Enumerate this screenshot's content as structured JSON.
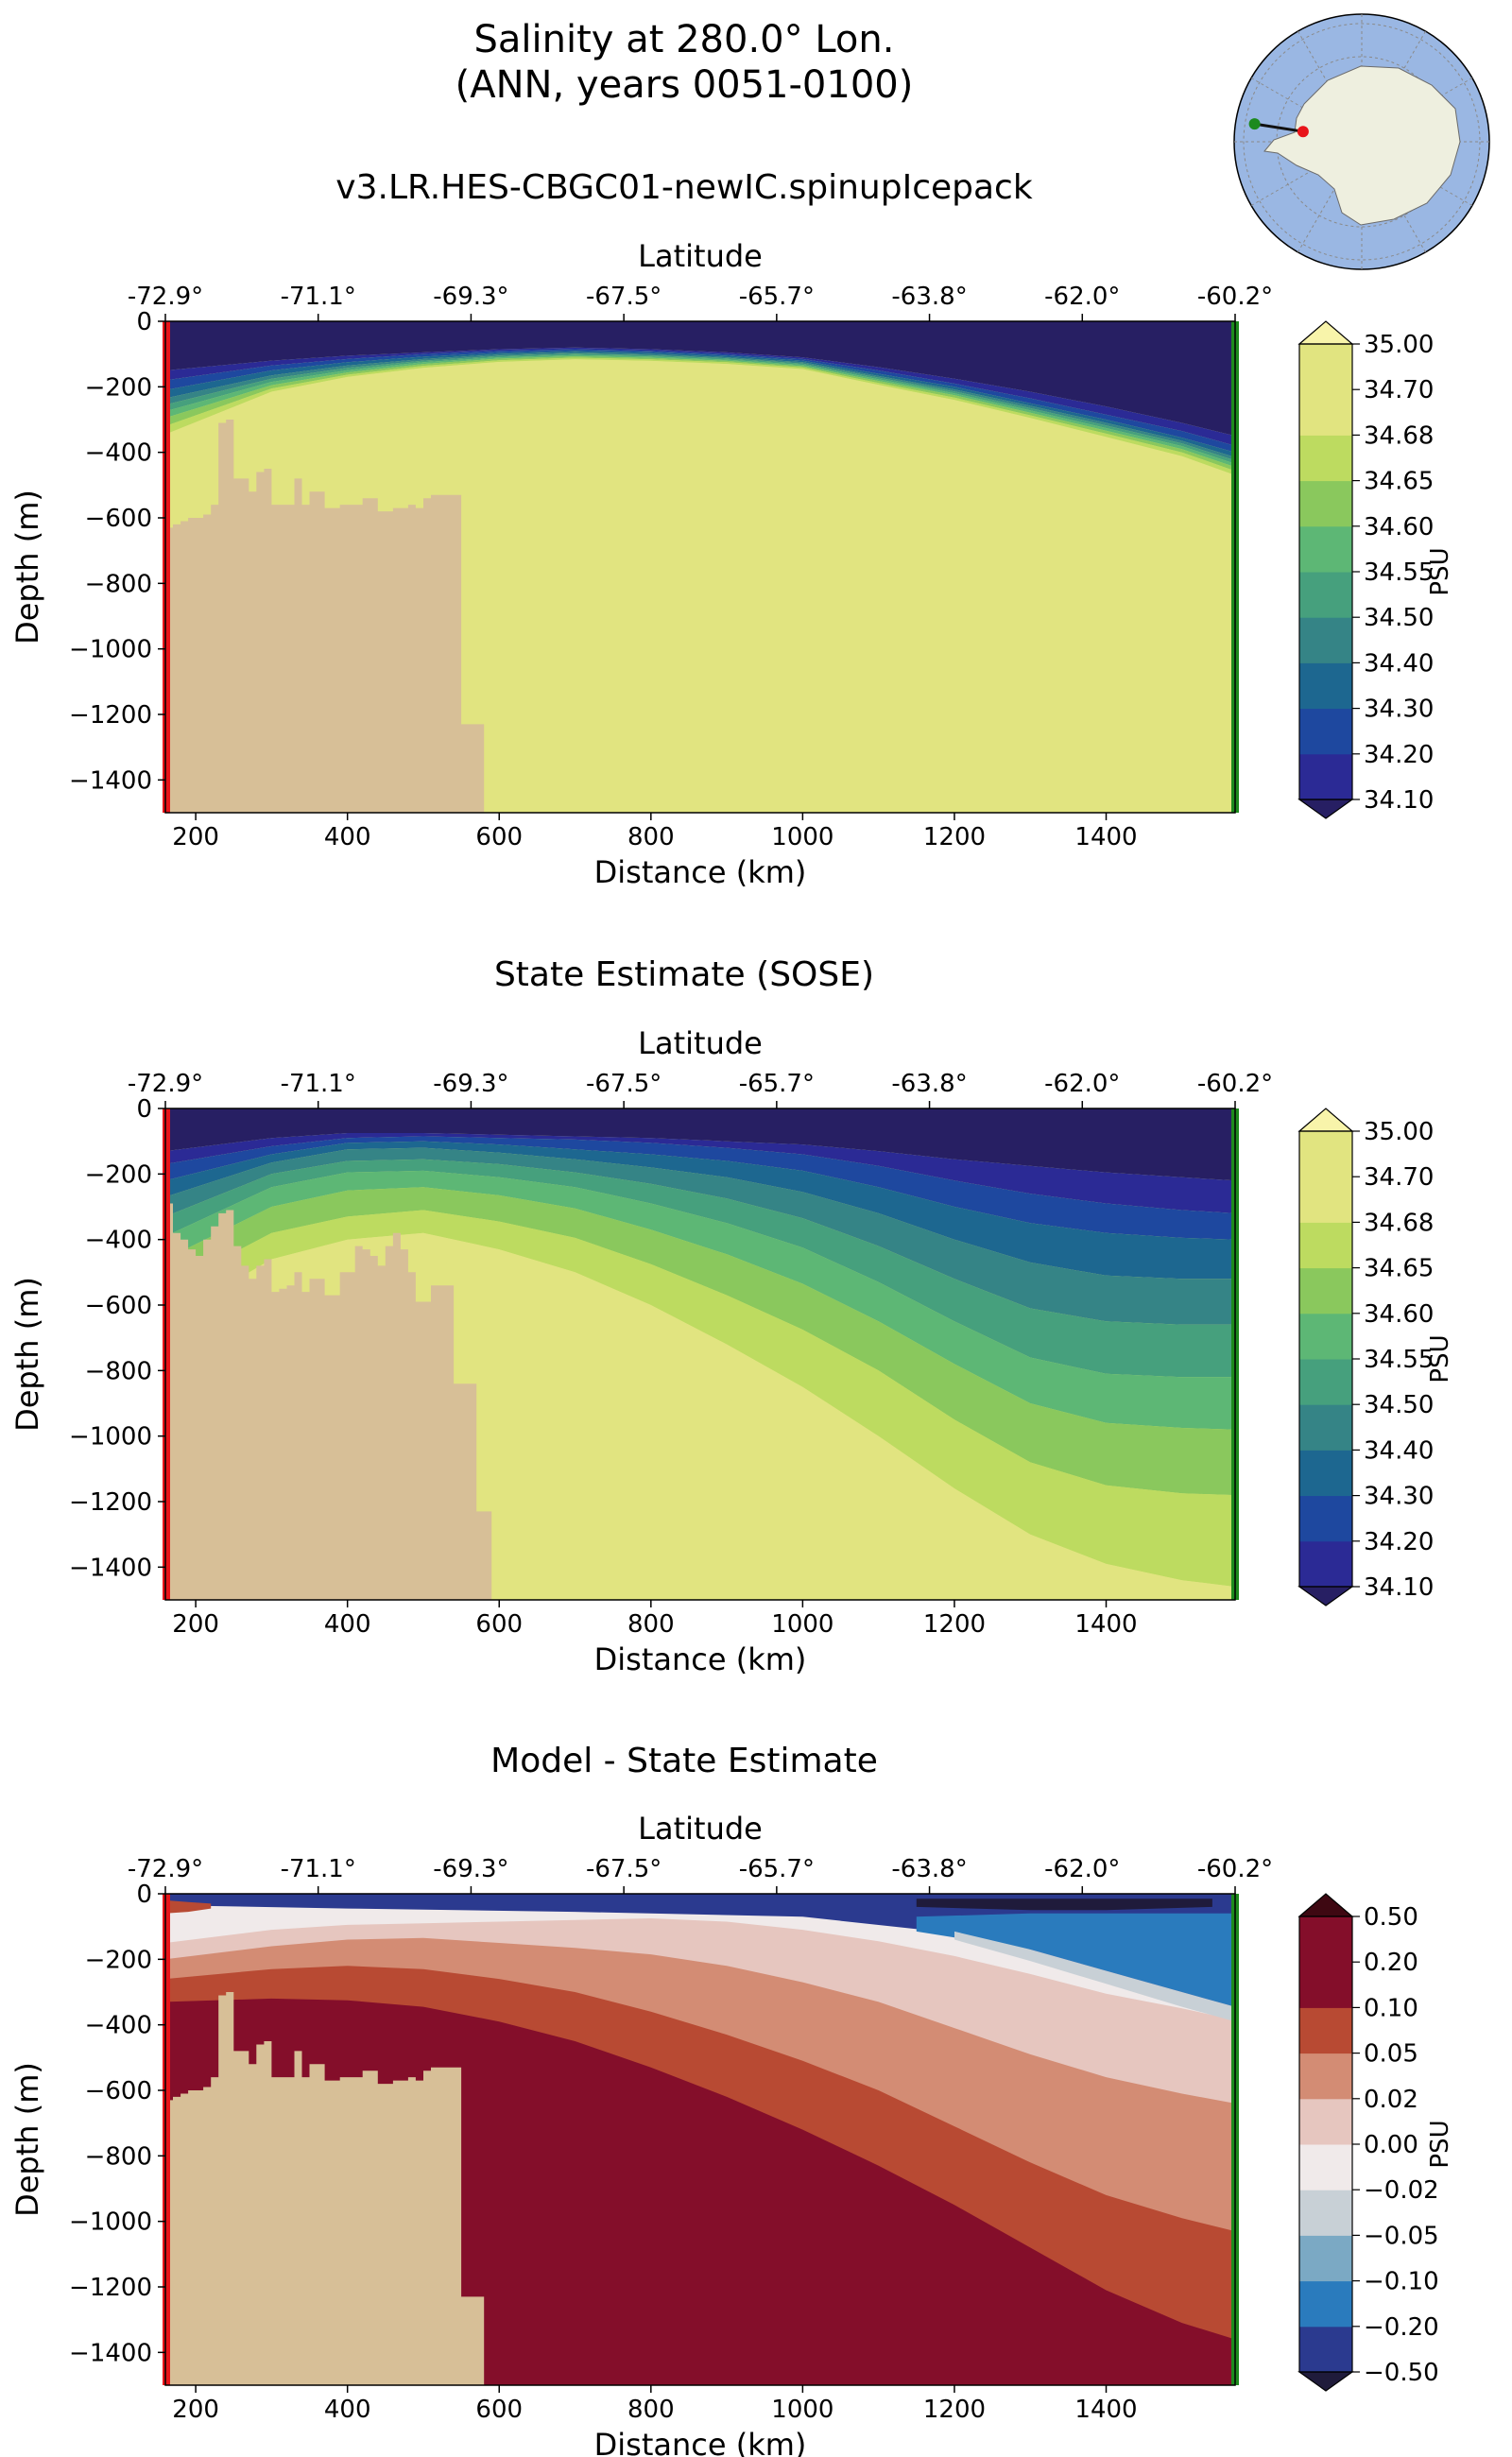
{
  "header": {
    "title_line1": "Salinity at 280.0° Lon.",
    "title_line2": "(ANN, years 0051-0100)"
  },
  "colors": {
    "land": "#d7bf97",
    "ocean": "#9ab7e3",
    "antarctica": "#eeefdf",
    "transect": "#111111",
    "start_marker": "#e8141a",
    "end_marker": "#1d8a1d",
    "salinity_cmap": [
      "#271f63",
      "#2b2a95",
      "#1e489f",
      "#1d6790",
      "#358486",
      "#46a07d",
      "#5db775",
      "#8ac85d",
      "#bddb60",
      "#e1e480",
      "#f8f4aa"
    ],
    "difference_cmap": [
      "#1f1b3b",
      "#2b3a8f",
      "#2a7bbd",
      "#7ba9c4",
      "#c8d0d6",
      "#f0eaea",
      "#e6c6bf",
      "#d38c74",
      "#b84a33",
      "#840e2a",
      "#3e0812"
    ]
  },
  "chart_data": [
    {
      "type": "contourf",
      "title": "v3.LR.HES-CBGC01-newIC.spinupIcepack",
      "xlabel": "Distance (km)",
      "ylabel": "Depth (m)",
      "top_xlabel": "Latitude",
      "xlim": [
        160,
        1570
      ],
      "ylim": [
        -1500,
        0
      ],
      "x_ticks": [
        200,
        400,
        600,
        800,
        1000,
        1200,
        1400
      ],
      "y_ticks": [
        0,
        -200,
        -400,
        -600,
        -800,
        -1000,
        -1200,
        -1400
      ],
      "x_tick_labels": [
        "200",
        "400",
        "600",
        "800",
        "1000",
        "1200",
        "1400"
      ],
      "y_tick_labels": [
        "0",
        "−200",
        "−400",
        "−600",
        "−800",
        "−1000",
        "−1200",
        "−1400"
      ],
      "top_tick_labels": [
        "-72.9°",
        "-71.1°",
        "-69.3°",
        "-67.5°",
        "-65.7°",
        "-63.8°",
        "-62.0°",
        "-60.2°"
      ],
      "colorbar": {
        "label": "PSU",
        "levels": [
          "34.10",
          "34.20",
          "34.30",
          "34.40",
          "34.50",
          "34.55",
          "34.60",
          "34.65",
          "34.68",
          "34.70",
          "35.00"
        ],
        "extend": "both"
      },
      "x_profile": [
        160,
        300,
        400,
        500,
        600,
        700,
        800,
        900,
        1000,
        1100,
        1200,
        1300,
        1400,
        1500,
        1570
      ],
      "contour_depths": [
        [
          -150,
          -120,
          -105,
          -95,
          -85,
          -80,
          -85,
          -95,
          -110,
          -140,
          -175,
          -215,
          -260,
          -310,
          -350
        ],
        [
          -180,
          -135,
          -115,
          -100,
          -90,
          -85,
          -90,
          -100,
          -115,
          -150,
          -190,
          -235,
          -285,
          -335,
          -380
        ],
        [
          -210,
          -150,
          -125,
          -108,
          -96,
          -90,
          -95,
          -105,
          -120,
          -160,
          -200,
          -250,
          -300,
          -355,
          -400
        ],
        [
          -235,
          -165,
          -135,
          -115,
          -101,
          -95,
          -100,
          -110,
          -125,
          -167,
          -208,
          -258,
          -310,
          -365,
          -415
        ],
        [
          -255,
          -175,
          -142,
          -120,
          -106,
          -99,
          -104,
          -113,
          -129,
          -172,
          -214,
          -265,
          -318,
          -373,
          -425
        ],
        [
          -275,
          -185,
          -149,
          -125,
          -110,
          -103,
          -108,
          -117,
          -133,
          -177,
          -220,
          -272,
          -326,
          -381,
          -435
        ],
        [
          -295,
          -195,
          -156,
          -130,
          -114,
          -107,
          -112,
          -121,
          -137,
          -182,
          -226,
          -279,
          -334,
          -390,
          -445
        ],
        [
          -320,
          -205,
          -163,
          -136,
          -119,
          -111,
          -116,
          -125,
          -141,
          -188,
          -233,
          -287,
          -343,
          -400,
          -457
        ],
        [
          -345,
          -215,
          -170,
          -142,
          -124,
          -116,
          -121,
          -130,
          -146,
          -194,
          -240,
          -295,
          -353,
          -412,
          -470
        ],
        [
          -370,
          -225,
          -178,
          -148,
          -129,
          -121,
          -126,
          -135,
          -152,
          -200,
          -248,
          -304,
          -364,
          -424,
          -485
        ]
      ]
    },
    {
      "type": "contourf",
      "title": "State Estimate (SOSE)",
      "xlabel": "Distance (km)",
      "ylabel": "Depth (m)",
      "top_xlabel": "Latitude",
      "xlim": [
        160,
        1570
      ],
      "ylim": [
        -1500,
        0
      ],
      "x_ticks": [
        200,
        400,
        600,
        800,
        1000,
        1200,
        1400
      ],
      "y_ticks": [
        0,
        -200,
        -400,
        -600,
        -800,
        -1000,
        -1200,
        -1400
      ],
      "x_tick_labels": [
        "200",
        "400",
        "600",
        "800",
        "1000",
        "1200",
        "1400"
      ],
      "y_tick_labels": [
        "0",
        "−200",
        "−400",
        "−600",
        "−800",
        "−1000",
        "−1200",
        "−1400"
      ],
      "top_tick_labels": [
        "-72.9°",
        "-71.1°",
        "-69.3°",
        "-67.5°",
        "-65.7°",
        "-63.8°",
        "-62.0°",
        "-60.2°"
      ],
      "colorbar": {
        "label": "PSU",
        "levels": [
          "34.10",
          "34.20",
          "34.30",
          "34.40",
          "34.50",
          "34.55",
          "34.60",
          "34.65",
          "34.68",
          "34.70",
          "35.00"
        ],
        "extend": "both"
      },
      "x_profile": [
        160,
        300,
        400,
        500,
        600,
        700,
        800,
        900,
        1000,
        1100,
        1200,
        1300,
        1400,
        1500,
        1570
      ],
      "contour_depths": [
        [
          -130,
          -90,
          -75,
          -75,
          -80,
          -85,
          -90,
          -100,
          -110,
          -130,
          -155,
          -175,
          -195,
          -210,
          -220
        ],
        [
          -170,
          -115,
          -90,
          -85,
          -90,
          -95,
          -105,
          -120,
          -140,
          -175,
          -220,
          -260,
          -290,
          -310,
          -320
        ],
        [
          -220,
          -140,
          -105,
          -100,
          -110,
          -125,
          -140,
          -160,
          -190,
          -240,
          -300,
          -350,
          -380,
          -395,
          -400
        ],
        [
          -270,
          -165,
          -125,
          -120,
          -135,
          -155,
          -180,
          -210,
          -255,
          -320,
          -400,
          -470,
          -510,
          -520,
          -520
        ],
        [
          -330,
          -200,
          -160,
          -155,
          -170,
          -195,
          -230,
          -275,
          -335,
          -420,
          -520,
          -610,
          -650,
          -660,
          -660
        ],
        [
          -390,
          -240,
          -195,
          -190,
          -210,
          -240,
          -290,
          -350,
          -425,
          -530,
          -650,
          -760,
          -810,
          -820,
          -820
        ],
        [
          -460,
          -300,
          -250,
          -240,
          -265,
          -305,
          -370,
          -445,
          -535,
          -650,
          -780,
          -900,
          -960,
          -975,
          -980
        ],
        [
          -550,
          -380,
          -330,
          -310,
          -345,
          -395,
          -475,
          -570,
          -675,
          -800,
          -950,
          -1080,
          -1150,
          -1175,
          -1180
        ],
        [
          -650,
          -460,
          -400,
          -380,
          -430,
          -500,
          -600,
          -720,
          -850,
          -1000,
          -1160,
          -1300,
          -1390,
          -1440,
          -1460
        ],
        [
          -760,
          -560,
          -480,
          -450,
          -520,
          -610,
          -730,
          -880,
          -1040,
          -1210,
          -1390,
          -1530,
          -1600,
          -1650,
          -1680
        ]
      ]
    },
    {
      "type": "contourf",
      "title": "Model - State Estimate",
      "xlabel": "Distance (km)",
      "ylabel": "Depth (m)",
      "top_xlabel": "Latitude",
      "xlim": [
        160,
        1570
      ],
      "ylim": [
        -1500,
        0
      ],
      "x_ticks": [
        200,
        400,
        600,
        800,
        1000,
        1200,
        1400
      ],
      "y_ticks": [
        0,
        -200,
        -400,
        -600,
        -800,
        -1000,
        -1200,
        -1400
      ],
      "x_tick_labels": [
        "200",
        "400",
        "600",
        "800",
        "1000",
        "1200",
        "1400"
      ],
      "y_tick_labels": [
        "0",
        "−200",
        "−400",
        "−600",
        "−800",
        "−1000",
        "−1200",
        "−1400"
      ],
      "top_tick_labels": [
        "-72.9°",
        "-71.1°",
        "-69.3°",
        "-67.5°",
        "-65.7°",
        "-63.8°",
        "-62.0°",
        "-60.2°"
      ],
      "colorbar": {
        "label": "PSU",
        "levels": [
          "−0.50",
          "−0.20",
          "−0.10",
          "−0.05",
          "−0.02",
          "0.00",
          "0.02",
          "0.05",
          "0.10",
          "0.20",
          "0.50"
        ],
        "extend": "both"
      },
      "difference_bands": {
        "surface": {
          "x": [
            160,
            400,
            700,
            1000,
            1200,
            1300,
            1400,
            1500,
            1570
          ],
          "bottom": [
            -35,
            -45,
            -55,
            -70,
            -120,
            -180,
            -250,
            -320,
            -370
          ]
        },
        "mid_blue": {
          "x": [
            1150,
            1300,
            1400,
            1500,
            1570
          ],
          "top": [
            -70,
            -60,
            -60,
            -60,
            -60
          ],
          "bottom": [
            -115,
            -170,
            -235,
            -300,
            -345
          ]
        },
        "light_blue": {
          "x": [
            1200,
            1300,
            1400,
            1500,
            1570
          ],
          "top": [
            -115,
            -170,
            -235,
            -300,
            -345
          ],
          "bottom": [
            -140,
            -205,
            -275,
            -345,
            -390
          ]
        },
        "dark_negative": {
          "x": [
            1150,
            1300,
            1400,
            1540
          ],
          "top": [
            -15,
            -15,
            -15,
            -15
          ],
          "bottom": [
            -40,
            -50,
            -50,
            -40
          ]
        },
        "positive_bands": [
          {
            "x": [
              160,
              300,
              400,
              500,
              600,
              700,
              800,
              900,
              1000,
              1100,
              1200,
              1300,
              1400,
              1500,
              1570
            ],
            "top": [
              -150,
              -110,
              -95,
              -90,
              -85,
              -80,
              -75,
              -85,
              -110,
              -145,
              -190,
              -245,
              -305,
              -350,
              -385
            ],
            "bottom": [
              -1500,
              -1500,
              -1500,
              -1500,
              -1500,
              -1500,
              -1500,
              -1500,
              -1500,
              -1500,
              -1500,
              -1500,
              -1500,
              -1500,
              -1500
            ]
          },
          {
            "x": [
              160,
              300,
              400,
              500,
              600,
              700,
              800,
              900,
              1000,
              1100,
              1200,
              1300,
              1400,
              1500,
              1570
            ],
            "top": [
              -200,
              -160,
              -140,
              -135,
              -150,
              -165,
              -185,
              -220,
              -270,
              -330,
              -410,
              -490,
              -560,
              -610,
              -640
            ],
            "bottom": [
              -1500,
              -1500,
              -1500,
              -1500,
              -1500,
              -1500,
              -1500,
              -1500,
              -1500,
              -1500,
              -1500,
              -1500,
              -1500,
              -1500,
              -1500
            ]
          },
          {
            "x": [
              160,
              300,
              400,
              500,
              600,
              700,
              800,
              900,
              1000,
              1100,
              1200,
              1300,
              1400,
              1500,
              1570
            ],
            "top": [
              -260,
              -230,
              -220,
              -230,
              -260,
              -300,
              -360,
              -430,
              -510,
              -600,
              -710,
              -820,
              -920,
              -990,
              -1030
            ],
            "bottom": [
              -1500,
              -1500,
              -1500,
              -1500,
              -1500,
              -1500,
              -1500,
              -1500,
              -1500,
              -1500,
              -1500,
              -1500,
              -1500,
              -1500,
              -1500
            ]
          },
          {
            "x": [
              160,
              300,
              400,
              500,
              600,
              700,
              800,
              900,
              1000,
              1100,
              1200,
              1300,
              1400,
              1500,
              1570
            ],
            "top": [
              -330,
              -320,
              -325,
              -345,
              -390,
              -450,
              -530,
              -620,
              -720,
              -830,
              -950,
              -1080,
              -1210,
              -1310,
              -1360
            ],
            "bottom": [
              -1500,
              -1500,
              -1500,
              -1500,
              -1500,
              -1500,
              -1500,
              -1500,
              -1500,
              -1500,
              -1500,
              -1500,
              -1500,
              -1500,
              -1500
            ]
          }
        ]
      }
    }
  ],
  "bathymetry": {
    "x": [
      160,
      170,
      180,
      190,
      200,
      210,
      220,
      230,
      240,
      250,
      260,
      270,
      280,
      290,
      300,
      310,
      320,
      330,
      340,
      350,
      360,
      370,
      380,
      390,
      400,
      410,
      420,
      430,
      440,
      450,
      460,
      470,
      480,
      490,
      500,
      510,
      520,
      530,
      540,
      550,
      560,
      570,
      580,
      590
    ],
    "depth_model": [
      -630,
      -620,
      -610,
      -600,
      -600,
      -590,
      -560,
      -310,
      -300,
      -480,
      -480,
      -520,
      -460,
      -450,
      -560,
      -560,
      -560,
      -480,
      -560,
      -520,
      -520,
      -570,
      -570,
      -560,
      -560,
      -560,
      -540,
      -540,
      -580,
      -580,
      -570,
      -570,
      -560,
      -570,
      -540,
      -530,
      -530,
      -530,
      -530,
      -1230,
      -1230,
      -1230,
      -1500,
      -1500
    ],
    "depth_sose": [
      -290,
      -380,
      -400,
      -430,
      -450,
      -400,
      -360,
      -320,
      -310,
      -420,
      -480,
      -520,
      -480,
      -460,
      -560,
      -550,
      -540,
      -500,
      -560,
      -520,
      -520,
      -570,
      -570,
      -500,
      -500,
      -420,
      -430,
      -450,
      -480,
      -420,
      -380,
      -430,
      -500,
      -590,
      -590,
      -540,
      -540,
      -540,
      -840,
      -840,
      -840,
      -1230,
      -1230,
      -1500
    ]
  },
  "inset_map": {
    "label": "",
    "transect_start": [
      0.27,
      0.46
    ],
    "transect_end": [
      0.08,
      0.43
    ]
  }
}
